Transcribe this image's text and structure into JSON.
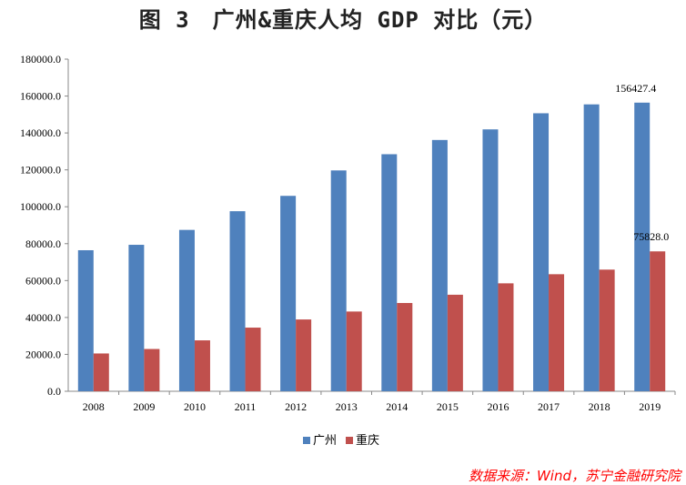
{
  "chart_data": {
    "type": "bar",
    "title": "图 3　广州&重庆人均 GDP 对比（元）",
    "categories": [
      "2008",
      "2009",
      "2010",
      "2011",
      "2012",
      "2013",
      "2014",
      "2015",
      "2016",
      "2017",
      "2018",
      "2019"
    ],
    "series": [
      {
        "name": "广州",
        "color": "#4f81bd",
        "values": [
          76440,
          79383,
          87458,
          97588,
          105909,
          119695,
          128478,
          136188,
          141933,
          150678,
          155491,
          156427.4
        ]
      },
      {
        "name": "重庆",
        "color": "#c0504d",
        "values": [
          20490,
          22920,
          27596,
          34500,
          38914,
          43223,
          47850,
          52321,
          58502,
          63442,
          65933,
          75828.0
        ]
      }
    ],
    "data_labels": [
      {
        "series": "广州",
        "category": "2019",
        "text": "156427.4"
      },
      {
        "series": "重庆",
        "category": "2019",
        "text": "75828.0"
      }
    ],
    "yticks": [
      "0.0",
      "20000.0",
      "40000.0",
      "60000.0",
      "80000.0",
      "100000.0",
      "120000.0",
      "140000.0",
      "160000.0",
      "180000.0"
    ],
    "ylim": [
      0,
      180000
    ],
    "grid": false,
    "legend": "bottom"
  },
  "source": "数据来源：Wind，苏宁金融研究院"
}
